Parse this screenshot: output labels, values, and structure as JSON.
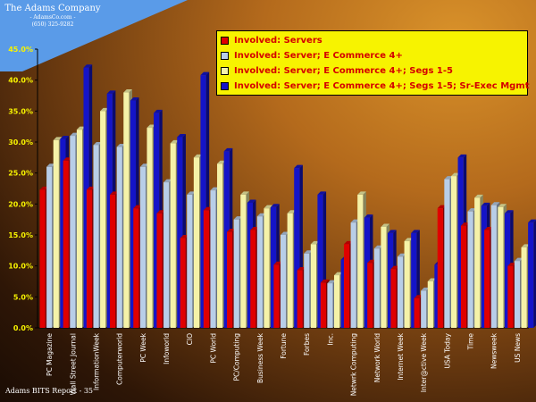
{
  "company": {
    "name": "The Adams Company",
    "website": "- AdamsCo.com -",
    "phone": "(650) 325-9282"
  },
  "footer": "Adams BITS Report - 35",
  "colors": {
    "background": "#7a4412",
    "banner": "#5a9be8",
    "legend_bg": "#f7f300",
    "legend_text": "#d40000"
  },
  "chart_data": {
    "type": "bar",
    "categories": [
      "PC Magazine",
      "Wall Street Journal",
      "InformationWeek",
      "Computerworld",
      "PC Week",
      "Infoworld",
      "CIO",
      "PC World",
      "PC/Computing",
      "Business Week",
      "Fortune",
      "Forbes",
      "Inc.",
      "Netwrk Computing",
      "Network World",
      "Internet Week",
      "Inter@ctive Week",
      "USA Today",
      "Time",
      "Newsweek",
      "US News"
    ],
    "series": [
      {
        "name": "Involved: Servers",
        "color": "#e00000",
        "values": [
          0.223,
          0.27,
          0.223,
          0.215,
          0.193,
          0.185,
          0.145,
          0.19,
          0.155,
          0.158,
          0.102,
          0.093,
          0.073,
          0.135,
          0.105,
          0.095,
          0.048,
          0.193,
          0.165,
          0.158,
          0.1
        ]
      },
      {
        "name": "Involved: Server; E Commerce 4+",
        "color": "#b8cee8",
        "values": [
          0.26,
          0.31,
          0.295,
          0.292,
          0.26,
          0.235,
          0.215,
          0.222,
          0.175,
          0.18,
          0.15,
          0.12,
          0.072,
          0.17,
          0.128,
          0.115,
          0.06,
          0.24,
          0.188,
          0.198,
          0.108
        ]
      },
      {
        "name": "Involved: Server; E Commerce 4+; Segs 1-5",
        "color": "#f5f2a8",
        "values": [
          0.303,
          0.32,
          0.35,
          0.38,
          0.323,
          0.298,
          0.275,
          0.265,
          0.215,
          0.193,
          0.185,
          0.135,
          0.085,
          0.215,
          0.163,
          0.14,
          0.075,
          0.245,
          0.21,
          0.195,
          0.13
        ]
      },
      {
        "name": "Involved: Server; E Commerce 4+; Segs 1-5;  Sr-Exec Mgmt",
        "color": "#1414c8",
        "values": [
          0.305,
          0.42,
          0.378,
          0.367,
          0.347,
          0.308,
          0.408,
          0.285,
          0.202,
          0.195,
          0.258,
          0.215,
          0.11,
          0.178,
          0.153,
          0.153,
          0.102,
          0.275,
          0.197,
          0.185,
          0.17
        ]
      }
    ],
    "y_ticks": [
      "0.0%",
      "5.0%",
      "10.0%",
      "15.0%",
      "20.0%",
      "25.0%",
      "30.0%",
      "35.0%",
      "40.0%",
      "45.0%"
    ],
    "ylim": [
      0,
      0.45
    ],
    "y_format": "percent",
    "legend_position": "top-right",
    "grid": false
  }
}
